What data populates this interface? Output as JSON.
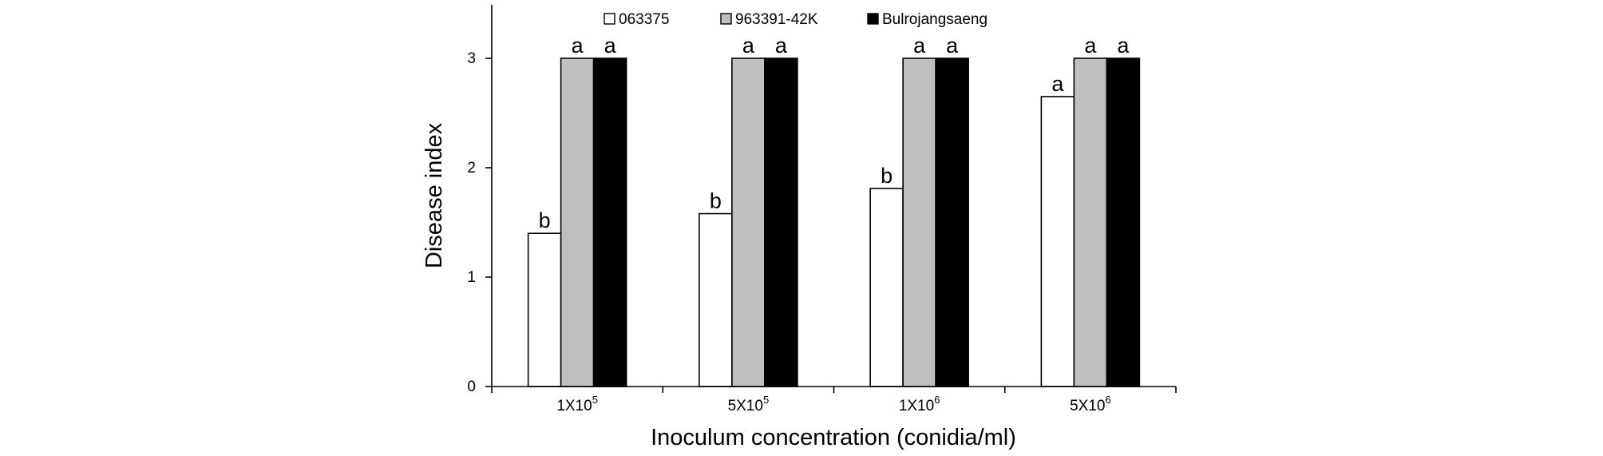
{
  "chart_data": {
    "type": "bar",
    "xlabel": "Inoculum concentration (conidia/ml)",
    "ylabel": "Disease index",
    "ylim": [
      0,
      3.5
    ],
    "yticks": [
      "0",
      "1",
      "2",
      "3"
    ],
    "categories": [
      {
        "base": "1X10",
        "exp": "5"
      },
      {
        "base": "5X10",
        "exp": "5"
      },
      {
        "base": "1X10",
        "exp": "6"
      },
      {
        "base": "5X10",
        "exp": "6"
      }
    ],
    "legend_position": "top",
    "grid": false,
    "series": [
      {
        "name": "063375",
        "color": "#ffffff",
        "values": [
          1.4,
          1.58,
          1.81,
          2.65
        ],
        "labels": [
          "b",
          "b",
          "b",
          "a"
        ]
      },
      {
        "name": "963391-42K",
        "color": "#bfbfbf",
        "values": [
          3.0,
          3.0,
          3.0,
          3.0
        ],
        "labels": [
          "a",
          "a",
          "a",
          "a"
        ]
      },
      {
        "name": "Bulrojangsaeng",
        "color": "#000000",
        "values": [
          3.0,
          3.0,
          3.0,
          3.0
        ],
        "labels": [
          "a",
          "a",
          "a",
          "a"
        ]
      }
    ]
  }
}
